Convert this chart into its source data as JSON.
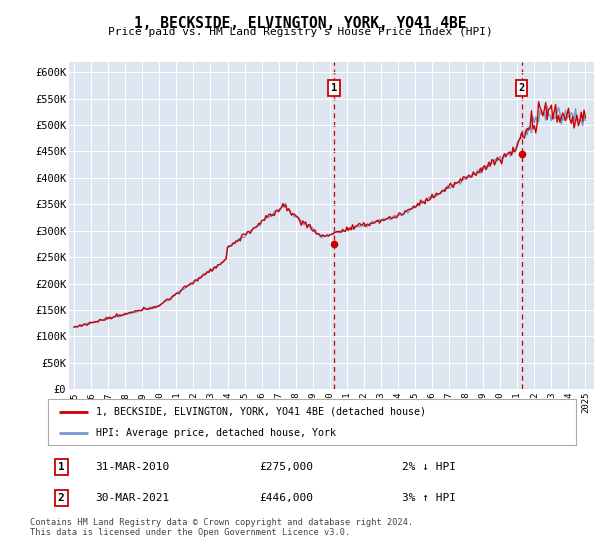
{
  "title": "1, BECKSIDE, ELVINGTON, YORK, YO41 4BE",
  "subtitle": "Price paid vs. HM Land Registry's House Price Index (HPI)",
  "ylabel_ticks": [
    "£0",
    "£50K",
    "£100K",
    "£150K",
    "£200K",
    "£250K",
    "£300K",
    "£350K",
    "£400K",
    "£450K",
    "£500K",
    "£550K",
    "£600K"
  ],
  "ylim": [
    0,
    620000
  ],
  "ytick_values": [
    0,
    50000,
    100000,
    150000,
    200000,
    250000,
    300000,
    350000,
    400000,
    450000,
    500000,
    550000,
    600000
  ],
  "legend_line1": "1, BECKSIDE, ELVINGTON, YORK, YO41 4BE (detached house)",
  "legend_line2": "HPI: Average price, detached house, York",
  "annotation1_date": "31-MAR-2010",
  "annotation1_price": "£275,000",
  "annotation1_hpi": "2% ↓ HPI",
  "annotation2_date": "30-MAR-2021",
  "annotation2_price": "£446,000",
  "annotation2_hpi": "3% ↑ HPI",
  "footer": "Contains HM Land Registry data © Crown copyright and database right 2024.\nThis data is licensed under the Open Government Licence v3.0.",
  "hpi_color": "#7799cc",
  "price_color": "#cc0000",
  "bg_color": "#dde5f0",
  "marker1_year": 2010.25,
  "marker2_year": 2021.25,
  "marker1_price": 275000,
  "marker2_price": 446000
}
